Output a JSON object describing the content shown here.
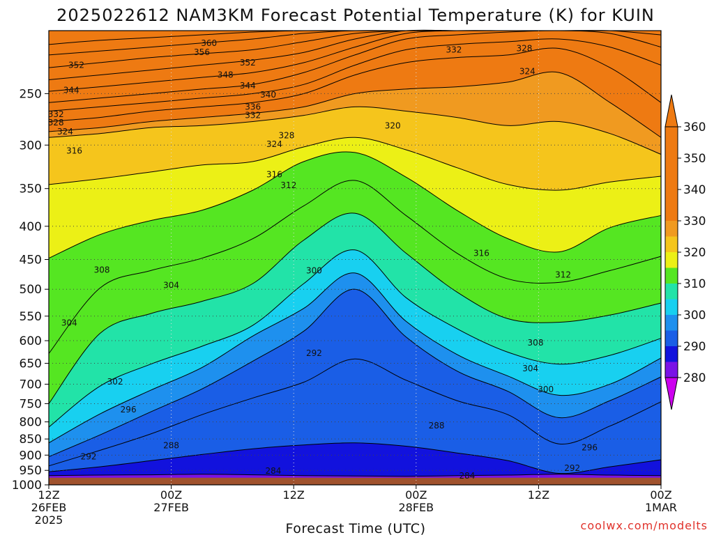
{
  "chart_data": {
    "type": "heatmap",
    "title": "2025022612 NAM3KM Forecast Potential Temperature (K) for KUIN",
    "xlabel": "Forecast Time (UTC)",
    "ylabel": "",
    "y_scale": "log",
    "y_reversed": true,
    "ylim": [
      1000,
      200
    ],
    "y_ticks": [
      250,
      300,
      350,
      400,
      450,
      500,
      550,
      600,
      650,
      700,
      750,
      800,
      850,
      900,
      950,
      1000
    ],
    "x_ticks": [
      {
        "hours": 0,
        "lines": [
          "12Z",
          "26FEB",
          "2025"
        ]
      },
      {
        "hours": 12,
        "lines": [
          "00Z",
          "27FEB"
        ]
      },
      {
        "hours": 24,
        "lines": [
          "12Z"
        ]
      },
      {
        "hours": 36,
        "lines": [
          "00Z",
          "28FEB"
        ]
      },
      {
        "hours": 48,
        "lines": [
          "12Z"
        ]
      },
      {
        "hours": 60,
        "lines": [
          "00Z",
          "1MAR"
        ]
      }
    ],
    "xlim": [
      0,
      60
    ],
    "grid": true,
    "surface_pressure": 975,
    "colorbar": {
      "levels": [
        280,
        290,
        300,
        310,
        320,
        330,
        340,
        350,
        360
      ],
      "colors": [
        "#cc00ee",
        "#7a12e6",
        "#1212dd",
        "#1a5ee6",
        "#1e90ee",
        "#18d0f0",
        "#22e3a8",
        "#55e622",
        "#ecf016",
        "#f5c51c",
        "#f09a20",
        "#ee7a12"
      ]
    },
    "isentropes": [
      {
        "theta": 284,
        "p": [
          968,
          966,
          965,
          963,
          965,
          968,
          969,
          970,
          968,
          966,
          963,
          966,
          968
        ]
      },
      {
        "theta": 288,
        "p": [
          955,
          938,
          918,
          898,
          880,
          868,
          862,
          872,
          893,
          918,
          960,
          938,
          915
        ]
      },
      {
        "theta": 292,
        "p": [
          935,
          885,
          835,
          780,
          735,
          695,
          640,
          690,
          742,
          780,
          865,
          812,
          745
        ]
      },
      {
        "theta": 296,
        "p": [
          905,
          838,
          772,
          712,
          645,
          580,
          500,
          592,
          668,
          718,
          788,
          742,
          682
        ]
      },
      {
        "theta": 300,
        "p": [
          862,
          778,
          715,
          660,
          590,
          535,
          472,
          560,
          630,
          680,
          728,
          700,
          638
        ]
      },
      {
        "theta": 304,
        "p": [
          815,
          705,
          652,
          612,
          568,
          490,
          435,
          515,
          575,
          625,
          652,
          632,
          595
        ]
      },
      {
        "theta": 308,
        "p": [
          750,
          585,
          545,
          522,
          490,
          420,
          382,
          440,
          505,
          555,
          562,
          548,
          525
        ]
      },
      {
        "theta": 312,
        "p": [
          628,
          498,
          468,
          448,
          418,
          372,
          340,
          385,
          440,
          482,
          488,
          468,
          445
        ]
      },
      {
        "theta": 316,
        "p": [
          448,
          412,
          392,
          378,
          352,
          318,
          308,
          336,
          378,
          418,
          438,
          402,
          385
        ]
      },
      {
        "theta": 320,
        "p": [
          345,
          338,
          330,
          322,
          318,
          302,
          292,
          305,
          325,
          345,
          352,
          342,
          335
        ]
      },
      {
        "theta": 324,
        "p": [
          292,
          288,
          282,
          280,
          276,
          270,
          262,
          266,
          272,
          280,
          276,
          288,
          310
        ]
      },
      {
        "theta": 328,
        "p": [
          286,
          282,
          276,
          272,
          268,
          262,
          250,
          246,
          244,
          240,
          232,
          258,
          292
        ]
      },
      {
        "theta": 332,
        "p": [
          276,
          272,
          266,
          262,
          258,
          250,
          234,
          224,
          220,
          218,
          213,
          228,
          258
        ]
      },
      {
        "theta": 336,
        "p": [
          266,
          262,
          258,
          254,
          250,
          242,
          226,
          214,
          210,
          208,
          206,
          212,
          226
        ]
      },
      {
        "theta": 340,
        "p": [
          258,
          254,
          250,
          246,
          242,
          232,
          218,
          206,
          203,
          201,
          200,
          202,
          212
        ]
      },
      {
        "theta": 344,
        "p": [
          248,
          244,
          240,
          236,
          232,
          224,
          212,
          202,
          200,
          200,
          200,
          200,
          203
        ]
      },
      {
        "theta": 348,
        "p": [
          238,
          234,
          230,
          226,
          222,
          216,
          206,
          200,
          200,
          200,
          200,
          200,
          200
        ]
      },
      {
        "theta": 352,
        "p": [
          228,
          224,
          220,
          217,
          214,
          208,
          202,
          200,
          200,
          200,
          200,
          200,
          200
        ]
      },
      {
        "theta": 356,
        "p": [
          218,
          215,
          212,
          209,
          206,
          202,
          200,
          200,
          200,
          200,
          200,
          200,
          200
        ]
      },
      {
        "theta": 360,
        "p": [
          210,
          207,
          205,
          203,
          201,
          200,
          200,
          200,
          200,
          200,
          200,
          200,
          200
        ]
      }
    ],
    "contour_labels": [
      {
        "text": "360",
        "hours": 15.7,
        "p": 209
      },
      {
        "text": "356",
        "hours": 15.0,
        "p": 216
      },
      {
        "text": "352",
        "hours": 2.7,
        "p": 226
      },
      {
        "text": "352",
        "hours": 19.5,
        "p": 224
      },
      {
        "text": "348",
        "hours": 17.3,
        "p": 234
      },
      {
        "text": "344",
        "hours": 2.2,
        "p": 247
      },
      {
        "text": "344",
        "hours": 19.5,
        "p": 243
      },
      {
        "text": "340",
        "hours": 21.5,
        "p": 251
      },
      {
        "text": "336",
        "hours": 20.0,
        "p": 262
      },
      {
        "text": "332",
        "hours": 0.7,
        "p": 269
      },
      {
        "text": "332",
        "hours": 20.0,
        "p": 270
      },
      {
        "text": "328",
        "hours": 0.7,
        "p": 277
      },
      {
        "text": "328",
        "hours": 23.3,
        "p": 290
      },
      {
        "text": "324",
        "hours": 1.6,
        "p": 286
      },
      {
        "text": "324",
        "hours": 22.1,
        "p": 299
      },
      {
        "text": "316",
        "hours": 2.5,
        "p": 306
      },
      {
        "text": "316",
        "hours": 22.1,
        "p": 333
      },
      {
        "text": "312",
        "hours": 23.5,
        "p": 346
      },
      {
        "text": "320",
        "hours": 33.7,
        "p": 280
      },
      {
        "text": "332",
        "hours": 39.7,
        "p": 214
      },
      {
        "text": "328",
        "hours": 46.6,
        "p": 213
      },
      {
        "text": "324",
        "hours": 46.9,
        "p": 231
      },
      {
        "text": "316",
        "hours": 42.4,
        "p": 440
      },
      {
        "text": "312",
        "hours": 50.4,
        "p": 475
      },
      {
        "text": "308",
        "hours": 5.2,
        "p": 467
      },
      {
        "text": "304",
        "hours": 12.0,
        "p": 493
      },
      {
        "text": "304",
        "hours": 2.0,
        "p": 563
      },
      {
        "text": "300",
        "hours": 26.0,
        "p": 468
      },
      {
        "text": "292",
        "hours": 26.0,
        "p": 627
      },
      {
        "text": "308",
        "hours": 47.7,
        "p": 604
      },
      {
        "text": "304",
        "hours": 47.2,
        "p": 662
      },
      {
        "text": "300",
        "hours": 48.7,
        "p": 713
      },
      {
        "text": "302",
        "hours": 6.5,
        "p": 694
      },
      {
        "text": "296",
        "hours": 7.8,
        "p": 766
      },
      {
        "text": "288",
        "hours": 12.0,
        "p": 870
      },
      {
        "text": "288",
        "hours": 38.0,
        "p": 811
      },
      {
        "text": "292",
        "hours": 3.9,
        "p": 905
      },
      {
        "text": "296",
        "hours": 53.0,
        "p": 876
      },
      {
        "text": "292",
        "hours": 51.3,
        "p": 942
      },
      {
        "text": "284",
        "hours": 22.0,
        "p": 952
      },
      {
        "text": "284",
        "hours": 41.0,
        "p": 969
      }
    ]
  },
  "footer": {
    "credit": "coolwx.com/modelts"
  }
}
